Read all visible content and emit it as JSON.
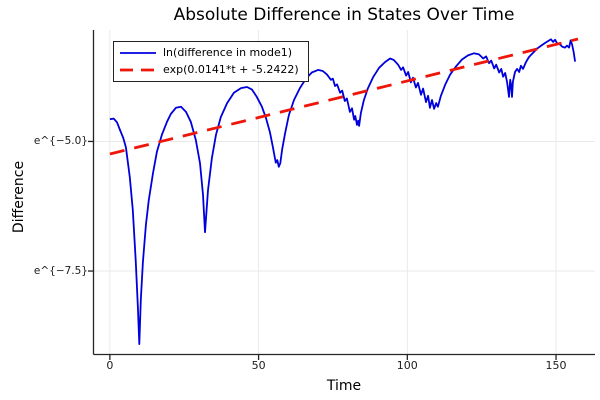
{
  "colors": {
    "background": "#ffffff",
    "grid": "#e9e9e9",
    "spine": "#242424",
    "text": "#000000",
    "series_blue": "#0000dd",
    "series_red": "#ee1509"
  },
  "chart_data": {
    "type": "line",
    "title": "Absolute Difference in States Over Time",
    "xlabel": "Time",
    "ylabel": "Difference",
    "xlim": [
      -5.5,
      163.1
    ],
    "ylim": [
      -9.11,
      -2.85
    ],
    "y_scale": "ln",
    "grid": true,
    "legend_position": "top-left",
    "x_ticks": [
      {
        "value": 0,
        "label": "0"
      },
      {
        "value": 50,
        "label": "50"
      },
      {
        "value": 100,
        "label": "100"
      },
      {
        "value": 150,
        "label": "150"
      }
    ],
    "y_ticks": [
      {
        "value": -5.0,
        "label": "e^{−5.0}"
      },
      {
        "value": -7.5,
        "label": "e^{−7.5}"
      }
    ],
    "series": [
      {
        "name": "ln(difference in mode1)",
        "color": "#0000dd",
        "dash": "none",
        "width": 1.8,
        "points": [
          [
            0,
            -4.57
          ],
          [
            1.3,
            -4.56
          ],
          [
            2.4,
            -4.63
          ],
          [
            3.4,
            -4.78
          ],
          [
            4.5,
            -4.93
          ],
          [
            5.4,
            -5.11
          ],
          [
            6.7,
            -5.69
          ],
          [
            7.7,
            -6.32
          ],
          [
            8.7,
            -7.29
          ],
          [
            9.4,
            -8.16
          ],
          [
            9.9,
            -8.91
          ],
          [
            10.4,
            -8.06
          ],
          [
            11.1,
            -7.33
          ],
          [
            12.1,
            -6.61
          ],
          [
            13.1,
            -6.13
          ],
          [
            14.5,
            -5.61
          ],
          [
            15.8,
            -5.2
          ],
          [
            17.5,
            -4.87
          ],
          [
            19.2,
            -4.62
          ],
          [
            20.5,
            -4.47
          ],
          [
            22.2,
            -4.35
          ],
          [
            23.9,
            -4.33
          ],
          [
            25.6,
            -4.43
          ],
          [
            27.2,
            -4.62
          ],
          [
            28.9,
            -4.97
          ],
          [
            30.3,
            -5.42
          ],
          [
            31.3,
            -6.03
          ],
          [
            32,
            -6.75
          ],
          [
            33,
            -5.94
          ],
          [
            34.3,
            -5.32
          ],
          [
            35.7,
            -4.87
          ],
          [
            37.3,
            -4.53
          ],
          [
            39.4,
            -4.26
          ],
          [
            41.7,
            -4.06
          ],
          [
            44.1,
            -3.97
          ],
          [
            46.1,
            -3.95
          ],
          [
            47.8,
            -4
          ],
          [
            49.4,
            -4.14
          ],
          [
            51.1,
            -4.33
          ],
          [
            52.5,
            -4.55
          ],
          [
            53.8,
            -4.82
          ],
          [
            54.8,
            -5.11
          ],
          [
            55.5,
            -5.32
          ],
          [
            55.8,
            -5.41
          ],
          [
            56.3,
            -5.36
          ],
          [
            56.8,
            -5.49
          ],
          [
            57.3,
            -5.42
          ],
          [
            57.9,
            -5.16
          ],
          [
            58.9,
            -4.84
          ],
          [
            60.2,
            -4.49
          ],
          [
            61.9,
            -4.2
          ],
          [
            63.9,
            -3.97
          ],
          [
            65.9,
            -3.79
          ],
          [
            67.9,
            -3.67
          ],
          [
            70,
            -3.62
          ],
          [
            71.6,
            -3.64
          ],
          [
            73,
            -3.71
          ],
          [
            74.3,
            -3.81
          ],
          [
            75,
            -3.79
          ],
          [
            75.7,
            -3.93
          ],
          [
            76.4,
            -3.9
          ],
          [
            77.4,
            -4.06
          ],
          [
            78.1,
            -4.02
          ],
          [
            79,
            -4.22
          ],
          [
            79.7,
            -4.17
          ],
          [
            80.7,
            -4.43
          ],
          [
            81.4,
            -4.36
          ],
          [
            82.1,
            -4.58
          ],
          [
            82.5,
            -4.51
          ],
          [
            83.1,
            -4.68
          ],
          [
            83.5,
            -4.6
          ],
          [
            83.8,
            -4.7
          ],
          [
            84.4,
            -4.45
          ],
          [
            85.4,
            -4.2
          ],
          [
            86.8,
            -3.97
          ],
          [
            88.5,
            -3.76
          ],
          [
            90.5,
            -3.58
          ],
          [
            92.5,
            -3.47
          ],
          [
            94.2,
            -3.4
          ],
          [
            95.5,
            -3.43
          ],
          [
            96.9,
            -3.52
          ],
          [
            97.9,
            -3.62
          ],
          [
            98.6,
            -3.57
          ],
          [
            99.6,
            -3.73
          ],
          [
            100.3,
            -3.66
          ],
          [
            101.2,
            -3.86
          ],
          [
            101.9,
            -3.77
          ],
          [
            102.9,
            -3.96
          ],
          [
            103.6,
            -3.87
          ],
          [
            104.6,
            -4.1
          ],
          [
            105.3,
            -3.98
          ],
          [
            106.3,
            -4.24
          ],
          [
            107,
            -4.12
          ],
          [
            107.6,
            -4.35
          ],
          [
            108.3,
            -4.2
          ],
          [
            109,
            -4.37
          ],
          [
            109.7,
            -4.26
          ],
          [
            110.3,
            -4.33
          ],
          [
            111.3,
            -4.12
          ],
          [
            112.7,
            -3.91
          ],
          [
            114.4,
            -3.71
          ],
          [
            116.4,
            -3.55
          ],
          [
            118.4,
            -3.42
          ],
          [
            120.4,
            -3.34
          ],
          [
            122.4,
            -3.3
          ],
          [
            124.1,
            -3.32
          ],
          [
            125.5,
            -3.4
          ],
          [
            126.5,
            -3.36
          ],
          [
            127.5,
            -3.49
          ],
          [
            128.2,
            -3.44
          ],
          [
            129.2,
            -3.59
          ],
          [
            129.9,
            -3.52
          ],
          [
            130.9,
            -3.67
          ],
          [
            131.6,
            -3.6
          ],
          [
            132.2,
            -3.75
          ],
          [
            132.9,
            -3.68
          ],
          [
            133.5,
            -3.85
          ],
          [
            133.9,
            -4
          ],
          [
            134.2,
            -4.14
          ],
          [
            134.6,
            -3.81
          ],
          [
            134.9,
            -3.91
          ],
          [
            135.2,
            -4.14
          ],
          [
            135.5,
            -3.85
          ],
          [
            136.2,
            -3.66
          ],
          [
            136.9,
            -3.6
          ],
          [
            137.6,
            -3.66
          ],
          [
            138.2,
            -3.54
          ],
          [
            138.9,
            -3.6
          ],
          [
            139.9,
            -3.47
          ],
          [
            140.9,
            -3.37
          ],
          [
            142.3,
            -3.29
          ],
          [
            143.6,
            -3.21
          ],
          [
            145,
            -3.15
          ],
          [
            146.3,
            -3.1
          ],
          [
            147.7,
            -3.05
          ],
          [
            148.3,
            -3.03
          ],
          [
            149,
            -3.08
          ],
          [
            149.7,
            -3.04
          ],
          [
            150.4,
            -3.11
          ],
          [
            151.4,
            -3.13
          ],
          [
            152,
            -3.17
          ],
          [
            153,
            -3.19
          ],
          [
            153.7,
            -3.15
          ],
          [
            154.4,
            -3.19
          ],
          [
            154.9,
            -3.05
          ],
          [
            155.4,
            -3.13
          ],
          [
            155.9,
            -3.27
          ],
          [
            156.4,
            -3.46
          ]
        ]
      },
      {
        "name": "exp(0.0141*t + -5.2422)",
        "color": "#ee1509",
        "dash": "15 10",
        "width": 2.8,
        "fit_slope": 0.0141,
        "fit_intercept": -5.2422,
        "points": [
          [
            0,
            -5.2422
          ],
          [
            157.4,
            -3.0229
          ]
        ]
      }
    ]
  }
}
